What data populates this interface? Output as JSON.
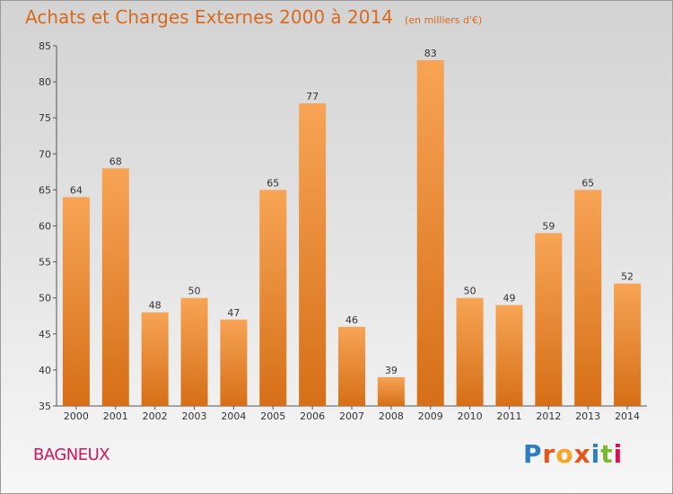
{
  "header": {
    "title": "Achats et Charges Externes 2000 à 2014",
    "unit": "(en milliers d'€)"
  },
  "footer": {
    "city": "BAGNEUX",
    "logo": {
      "text": "Proxiti",
      "letter_colors": [
        "#2d7fc1",
        "#e8541b",
        "#f5a623",
        "#e8541b",
        "#2d7fc1",
        "#7cb82f",
        "#d4145a"
      ]
    }
  },
  "colors": {
    "bar_top": "#f7a455",
    "bar_bottom": "#d66f17",
    "title": "#d86a1e",
    "city": "#d4145a"
  },
  "chart_data": {
    "type": "bar",
    "title": "Achats et Charges Externes 2000 à 2014",
    "subtitle": "(en milliers d'€)",
    "categories": [
      "2000",
      "2001",
      "2002",
      "2003",
      "2004",
      "2005",
      "2006",
      "2007",
      "2008",
      "2009",
      "2010",
      "2011",
      "2012",
      "2013",
      "2014"
    ],
    "values": [
      64,
      68,
      48,
      50,
      47,
      65,
      77,
      46,
      39,
      83,
      50,
      49,
      59,
      65,
      52
    ],
    "ylim": [
      35,
      85
    ],
    "yticks": [
      35,
      40,
      45,
      50,
      55,
      60,
      65,
      70,
      75,
      80,
      85
    ],
    "grid": false,
    "legend": "none"
  }
}
